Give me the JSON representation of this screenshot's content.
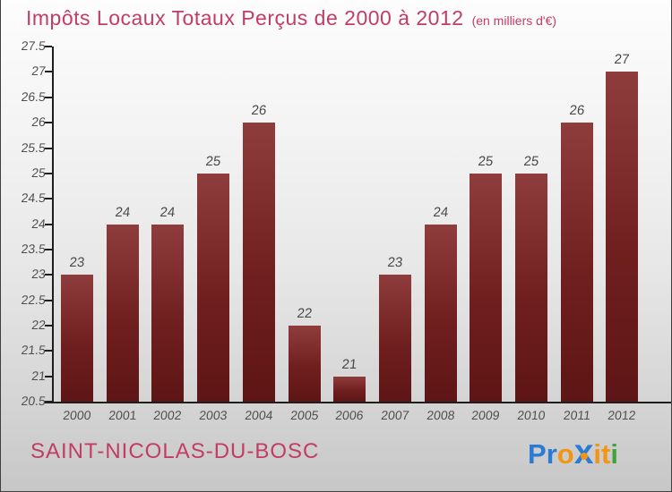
{
  "title": {
    "text": "Impôts Locaux Totaux Perçus de 2000 à 2012",
    "subtitle": "(en milliers d'€)"
  },
  "chart_data": {
    "type": "bar",
    "title": "Impôts Locaux Totaux Perçus de 2000 à 2012 (en milliers d'€)",
    "categories": [
      "2000",
      "2001",
      "2002",
      "2003",
      "2004",
      "2005",
      "2006",
      "2007",
      "2008",
      "2009",
      "2010",
      "2011",
      "2012"
    ],
    "values": [
      23,
      24,
      24,
      25,
      26,
      22,
      21,
      23,
      24,
      25,
      25,
      26,
      27
    ],
    "xlabel": "",
    "ylabel": "",
    "ylim": [
      20.5,
      27.5
    ],
    "ytick_step": 0.5,
    "grid": false,
    "legend": false,
    "value_labels": true,
    "bar_color_top": "#8f3c3c",
    "bar_color_mid": "#701f1f",
    "bar_color_bottom": "#5e1515",
    "axis_color": "#1e1e1e",
    "label_color": "#4f4f4f"
  },
  "footer": {
    "location": "SAINT-NICOLAS-DU-BOSC",
    "logo": {
      "letters": [
        {
          "ch": "P",
          "c": "blue"
        },
        {
          "ch": "r",
          "c": "blue"
        },
        {
          "ch": "o",
          "c": "orange"
        },
        {
          "ch": "x",
          "c": "blue",
          "big": true
        },
        {
          "ch": "i",
          "c": "orange"
        },
        {
          "ch": "t",
          "c": "orange"
        },
        {
          "ch": "i",
          "c": "green"
        }
      ],
      "palette": {
        "blue": "#2b7bd4",
        "orange": "#f29414",
        "green": "#41a33e"
      }
    }
  },
  "colors": {
    "title_pink": "#c33c64",
    "background_top": "#fdfdfd",
    "background_bottom": "#c7c7c7",
    "border": "#3f3f3f"
  }
}
